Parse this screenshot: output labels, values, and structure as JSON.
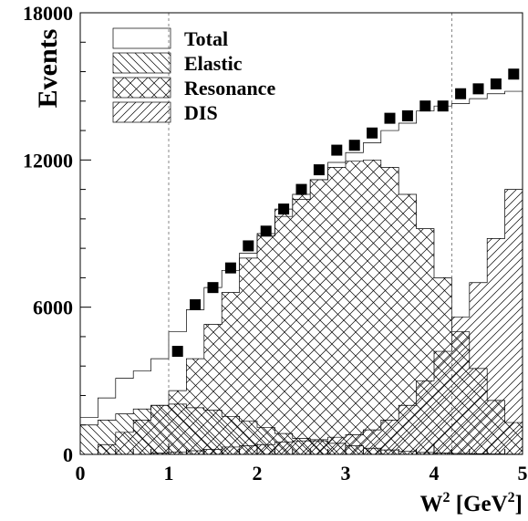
{
  "chart_data": {
    "type": "area",
    "title": "",
    "xlabel": "W",
    "xlabel_sup": "2",
    "xlabel_unit_open": " [GeV",
    "xlabel_unit_sup": "2",
    "xlabel_unit_close": "]",
    "ylabel": "Events",
    "xlim": [
      0,
      5
    ],
    "ylim": [
      0,
      18000
    ],
    "x_ticks": [
      "0",
      "1",
      "2",
      "3",
      "4",
      "5"
    ],
    "y_ticks": [
      "0",
      "6000",
      "12000",
      "18000"
    ],
    "reference_lines_x": [
      1.0,
      4.2
    ],
    "legend_position": "top-left",
    "legend": [
      "Total",
      "Elastic",
      "Resonance",
      "DIS"
    ],
    "bin_edges": [
      0,
      0.2,
      0.4,
      0.6,
      0.8,
      1.0,
      1.2,
      1.4,
      1.6,
      1.8,
      2.0,
      2.2,
      2.4,
      2.6,
      2.8,
      3.0,
      3.2,
      3.4,
      3.6,
      3.8,
      4.0,
      4.2,
      4.4,
      4.6,
      4.8,
      5.0
    ],
    "series": [
      {
        "name": "Total",
        "style": "open",
        "values": [
          1500,
          2300,
          3100,
          3400,
          3900,
          5000,
          5900,
          6800,
          7500,
          8200,
          8900,
          9700,
          10400,
          11200,
          11900,
          12300,
          12700,
          13200,
          13500,
          14000,
          14200,
          14300,
          14500,
          14700,
          14800
        ]
      },
      {
        "name": "Elastic",
        "style": "hatch-diag-down",
        "values": [
          1200,
          1400,
          1650,
          1850,
          2000,
          2050,
          1900,
          1800,
          1550,
          1350,
          1100,
          850,
          650,
          550,
          450,
          350,
          250,
          180,
          120,
          80,
          60,
          40,
          30,
          20,
          10
        ]
      },
      {
        "name": "Resonance",
        "style": "crosshatch",
        "values": [
          0,
          400,
          900,
          1400,
          2000,
          2600,
          3900,
          5300,
          6600,
          8000,
          9000,
          10000,
          10600,
          11200,
          11700,
          11950,
          12000,
          11700,
          10600,
          9200,
          7200,
          5000,
          3500,
          2200,
          1300
        ]
      },
      {
        "name": "DIS",
        "style": "hatch-diag-up",
        "values": [
          0,
          0,
          0,
          0,
          50,
          100,
          150,
          200,
          300,
          350,
          400,
          500,
          550,
          600,
          700,
          800,
          1000,
          1400,
          2000,
          3000,
          4200,
          5600,
          7000,
          8800,
          10800
        ]
      }
    ],
    "data_points": {
      "name": "Data",
      "x": [
        1.1,
        1.3,
        1.5,
        1.7,
        1.9,
        2.1,
        2.3,
        2.5,
        2.7,
        2.9,
        3.1,
        3.3,
        3.5,
        3.7,
        3.9,
        4.1,
        4.3,
        4.5,
        4.7,
        4.9
      ],
      "y": [
        4200,
        6100,
        6800,
        7600,
        8500,
        9100,
        10000,
        10800,
        11600,
        12400,
        12600,
        13100,
        13700,
        13800,
        14200,
        14200,
        14700,
        14900,
        15100,
        15500
      ]
    }
  }
}
